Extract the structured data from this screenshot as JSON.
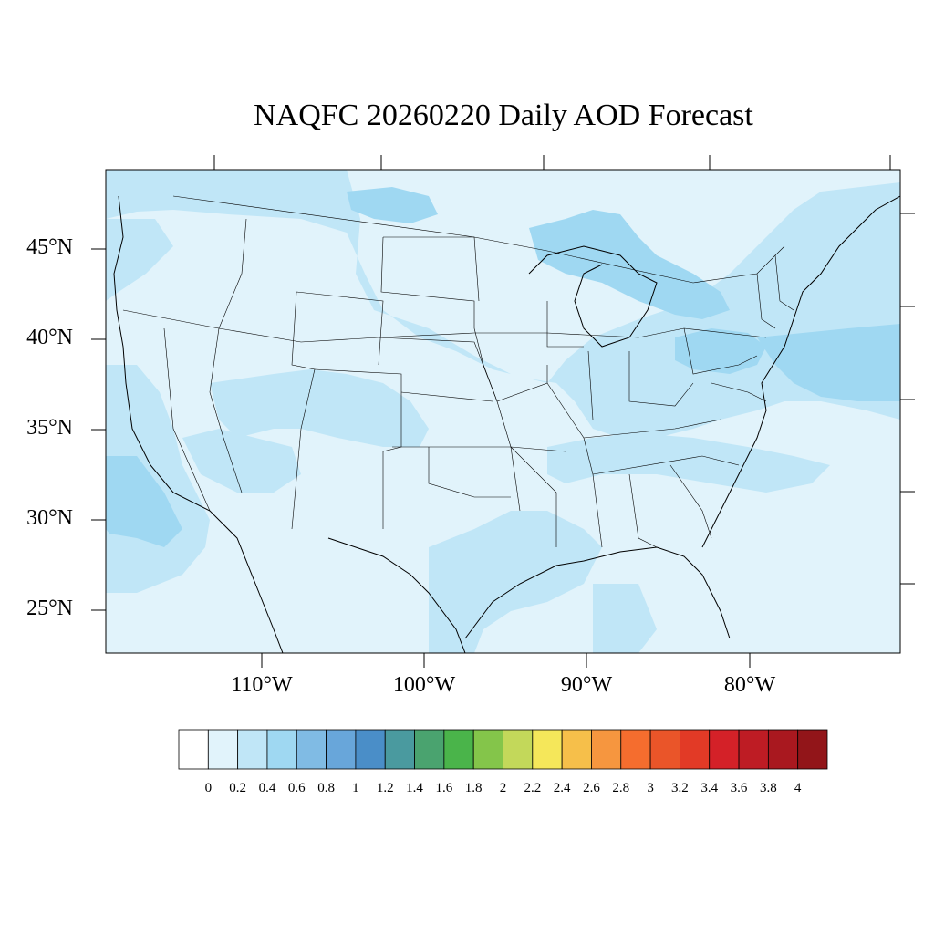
{
  "title": "NAQFC 20260220 Daily AOD Forecast",
  "lat_labels": [
    "45°N",
    "40°N",
    "35°N",
    "30°N",
    "25°N"
  ],
  "lon_labels": [
    "110°W",
    "100°W",
    "90°W",
    "80°W"
  ],
  "colorbar": {
    "labels": [
      "0",
      "0.2",
      "0.4",
      "0.6",
      "0.8",
      "1",
      "1.2",
      "1.4",
      "1.6",
      "1.8",
      "2",
      "2.2",
      "2.4",
      "2.6",
      "2.8",
      "3",
      "3.2",
      "3.4",
      "3.6",
      "3.8",
      "4"
    ],
    "colors": [
      "#ffffff",
      "#e1f3fb",
      "#c0e6f7",
      "#9fd8f2",
      "#80bbe4",
      "#68a6da",
      "#4a8ec8",
      "#4a9a9f",
      "#4aa36f",
      "#4ab44a",
      "#84c54a",
      "#c3d85a",
      "#f5e75a",
      "#f6bf4a",
      "#f6963f",
      "#f56d2e",
      "#ea5529",
      "#e23a26",
      "#d42128",
      "#be1c24",
      "#a9181f",
      "#921519"
    ]
  }
}
